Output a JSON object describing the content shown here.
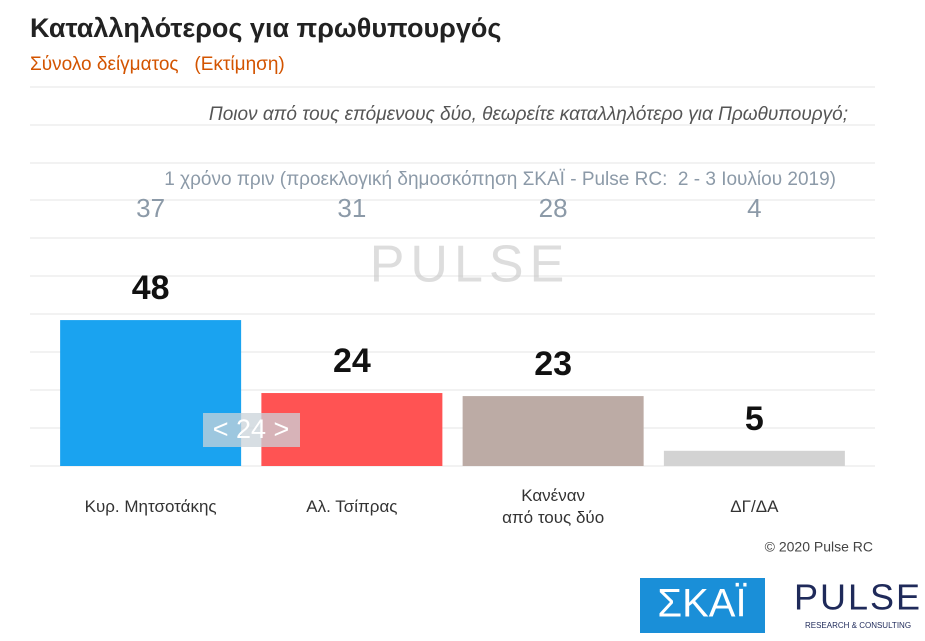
{
  "chart_data": {
    "type": "bar",
    "title": "Καταλληλότερος για πρωθυπουργός",
    "subtitle": "Σύνολο δείγματος   (Εκτίμηση)",
    "question": "Ποιον από τους επόμενους δύο, θεωρείτε καταλληλότερο για Πρωθυπουργό;",
    "previous_note": "1 χρόνο πριν (προεκλογική δημοσκόπηση ΣΚΑΪ - Pulse RC:  2 - 3 Ιουλίου 2019)",
    "categories": [
      "Κυρ. Μητσοτάκης",
      "Αλ. Τσίπρας",
      "Κανέναν\nαπό τους δύο",
      "ΔΓ/ΔΑ"
    ],
    "values": [
      48,
      24,
      23,
      5
    ],
    "previous_values": [
      37,
      31,
      28,
      4
    ],
    "colors": [
      "#1aa3f0",
      "#ff5353",
      "#bcaba5",
      "#d3d3d3"
    ],
    "ylim": [
      0,
      125
    ],
    "annotation": "< 24 >",
    "copyright": "© 2020 Pulse RC",
    "watermark": "PULSE",
    "logo_left": "ΣΚΑΪ",
    "logo_right": "PULSE",
    "logo_right_tag": "RESEARCH & CONSULTING"
  }
}
